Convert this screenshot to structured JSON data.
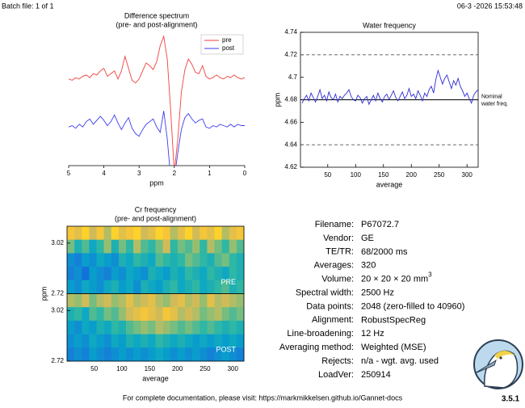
{
  "header": {
    "batch": "Batch file: 1 of 1",
    "timestamp": "06-3 -2026 15:53:48"
  },
  "chart_data": [
    {
      "type": "line",
      "title": "Difference spectrum",
      "subtitle": "(pre- and post-alignment)",
      "xlabel": "ppm",
      "x": [
        5.0,
        4.9,
        4.8,
        4.7,
        4.6,
        4.5,
        4.4,
        4.3,
        4.2,
        4.1,
        4.0,
        3.9,
        3.8,
        3.7,
        3.6,
        3.5,
        3.4,
        3.3,
        3.2,
        3.1,
        3.0,
        2.9,
        2.8,
        2.7,
        2.6,
        2.5,
        2.4,
        2.3,
        2.2,
        2.1,
        2.0,
        1.9,
        1.8,
        1.7,
        1.6,
        1.5,
        1.4,
        1.3,
        1.2,
        1.1,
        1.0,
        0.9,
        0.8,
        0.7,
        0.6,
        0.5,
        0.4,
        0.3,
        0.2,
        0.1,
        0.0
      ],
      "xlim": [
        5,
        0
      ],
      "xticks": [
        5,
        4,
        3,
        2,
        1,
        0
      ],
      "ylim": [
        -10,
        10
      ],
      "legend": "upper right",
      "series": [
        {
          "name": "pre",
          "color": "#f0413c",
          "values": [
            3.0,
            2.8,
            3.2,
            3.0,
            3.4,
            3.6,
            3.2,
            3.8,
            3.6,
            4.2,
            4.6,
            3.4,
            3.8,
            4.2,
            3.0,
            4.2,
            6.4,
            4.6,
            2.8,
            2.4,
            3.0,
            4.2,
            5.4,
            5.0,
            4.4,
            5.6,
            8.0,
            9.4,
            6.0,
            -2.0,
            -11.0,
            -6.0,
            1.0,
            4.4,
            6.0,
            5.2,
            4.0,
            3.8,
            5.0,
            3.4,
            3.0,
            3.2,
            3.6,
            3.2,
            3.0,
            3.4,
            3.2,
            3.6,
            3.2,
            3.0,
            3.2
          ]
        },
        {
          "name": "post",
          "color": "#3c3cf0",
          "values": [
            -4.2,
            -4.0,
            -4.4,
            -3.8,
            -4.2,
            -3.4,
            -3.0,
            -3.8,
            -3.2,
            -2.6,
            -3.2,
            -4.0,
            -3.4,
            -2.4,
            -3.6,
            -4.6,
            -3.6,
            -2.8,
            -4.4,
            -5.2,
            -5.6,
            -4.6,
            -3.8,
            -3.4,
            -3.0,
            -4.2,
            -5.0,
            -1.8,
            -6.0,
            -12.0,
            -12.0,
            -8.0,
            -4.6,
            -2.8,
            -2.2,
            -3.0,
            -3.6,
            -3.2,
            -3.0,
            -4.2,
            -4.4,
            -4.0,
            -4.2,
            -3.8,
            -4.0,
            -4.2,
            -3.8,
            -4.2,
            -3.8,
            -4.0,
            -4.0
          ]
        }
      ]
    },
    {
      "type": "line",
      "title": "Water frequency",
      "xlabel": "average",
      "ylabel": "ppm",
      "x": [
        4,
        8,
        12,
        16,
        20,
        24,
        28,
        32,
        36,
        40,
        44,
        48,
        52,
        56,
        60,
        64,
        68,
        72,
        76,
        80,
        84,
        88,
        92,
        96,
        100,
        104,
        108,
        112,
        116,
        120,
        124,
        128,
        132,
        136,
        140,
        144,
        148,
        152,
        156,
        160,
        164,
        168,
        172,
        176,
        180,
        184,
        188,
        192,
        196,
        200,
        204,
        208,
        212,
        216,
        220,
        224,
        228,
        232,
        236,
        240,
        244,
        248,
        252,
        256,
        260,
        264,
        268,
        272,
        276,
        280,
        284,
        288,
        292,
        296,
        300,
        304,
        308,
        312,
        316,
        320
      ],
      "xlim": [
        1,
        320
      ],
      "xticks": [
        50,
        100,
        150,
        200,
        250,
        300
      ],
      "ylim": [
        4.62,
        4.74
      ],
      "yticks": [
        4.62,
        4.64,
        4.66,
        4.68,
        4.7,
        4.72,
        4.74
      ],
      "series": [
        {
          "color": "#2b2bd6",
          "values": [
            4.677,
            4.681,
            4.684,
            4.679,
            4.686,
            4.682,
            4.678,
            4.683,
            4.689,
            4.681,
            4.684,
            4.679,
            4.687,
            4.682,
            4.68,
            4.685,
            4.678,
            4.683,
            4.681,
            4.684,
            4.686,
            4.689,
            4.683,
            4.68,
            4.679,
            4.684,
            4.682,
            4.677,
            4.681,
            4.683,
            4.676,
            4.68,
            4.684,
            4.679,
            4.686,
            4.681,
            4.678,
            4.683,
            4.685,
            4.68,
            4.684,
            4.688,
            4.682,
            4.679,
            4.683,
            4.687,
            4.681,
            4.684,
            4.69,
            4.683,
            4.685,
            4.681,
            4.688,
            4.684,
            4.679,
            4.686,
            4.683,
            4.689,
            4.692,
            4.686,
            4.698,
            4.706,
            4.7,
            4.694,
            4.699,
            4.702,
            4.696,
            4.69,
            4.697,
            4.693,
            4.699,
            4.692,
            4.688,
            4.683,
            4.686,
            4.681,
            4.677,
            4.684,
            4.687,
            4.689
          ]
        }
      ],
      "reference_lines": [
        {
          "value": 4.72,
          "style": "dashed"
        },
        {
          "value": 4.64,
          "style": "dashed"
        },
        {
          "value": 4.68,
          "style": "solid",
          "label": [
            "Nominal",
            "water freq."
          ]
        }
      ]
    },
    {
      "type": "heatmap",
      "title": "Cr frequency",
      "subtitle": "(pre- and post-alignment)",
      "xlabel": "average",
      "ylabel": "ppm",
      "xlim": [
        1,
        320
      ],
      "xticks": [
        50,
        100,
        150,
        200,
        250,
        300
      ],
      "ylim": [
        2.72,
        3.12
      ],
      "yticks": [
        2.72,
        3.02
      ],
      "colormap": "parula",
      "panels": [
        {
          "label": "PRE",
          "z": [
            [
              0.85,
              0.8,
              0.9,
              0.75,
              0.85,
              0.7,
              0.9,
              0.8,
              0.85,
              0.9,
              0.75,
              0.8,
              0.9,
              0.85,
              0.7,
              0.8,
              0.9,
              0.75,
              0.85,
              0.8,
              0.9,
              0.7,
              0.8,
              0.85
            ],
            [
              0.6,
              0.45,
              0.55,
              0.4,
              0.5,
              0.65,
              0.45,
              0.6,
              0.5,
              0.7,
              0.55,
              0.5,
              0.6,
              0.75,
              0.5,
              0.6,
              0.55,
              0.65,
              0.5,
              0.7,
              0.6,
              0.5,
              0.65,
              0.55
            ],
            [
              0.3,
              0.25,
              0.35,
              0.3,
              0.4,
              0.35,
              0.3,
              0.45,
              0.4,
              0.5,
              0.45,
              0.4,
              0.55,
              0.5,
              0.45,
              0.5,
              0.6,
              0.55,
              0.5,
              0.45,
              0.55,
              0.6,
              0.5,
              0.45
            ],
            [
              0.25,
              0.3,
              0.2,
              0.35,
              0.3,
              0.25,
              0.35,
              0.3,
              0.4,
              0.35,
              0.3,
              0.45,
              0.4,
              0.35,
              0.45,
              0.4,
              0.5,
              0.45,
              0.4,
              0.5,
              0.45,
              0.4,
              0.5,
              0.45
            ],
            [
              0.35,
              0.3,
              0.4,
              0.35,
              0.3,
              0.4,
              0.45,
              0.35,
              0.4,
              0.3,
              0.45,
              0.4,
              0.35,
              0.45,
              0.5,
              0.4,
              0.45,
              0.5,
              0.4,
              0.45,
              0.5,
              0.55,
              0.45,
              0.5
            ]
          ]
        },
        {
          "label": "POST",
          "z": [
            [
              0.7,
              0.65,
              0.75,
              0.6,
              0.7,
              0.75,
              0.65,
              0.7,
              0.8,
              0.7,
              0.75,
              0.8,
              0.7,
              0.65,
              0.75,
              0.8,
              0.7,
              0.75,
              0.65,
              0.8,
              0.7,
              0.75,
              0.7,
              0.65
            ],
            [
              0.45,
              0.5,
              0.4,
              0.55,
              0.5,
              0.6,
              0.55,
              0.65,
              0.75,
              0.8,
              0.85,
              0.8,
              0.75,
              0.85,
              0.8,
              0.7,
              0.75,
              0.7,
              0.6,
              0.65,
              0.7,
              0.6,
              0.55,
              0.6
            ],
            [
              0.35,
              0.3,
              0.4,
              0.35,
              0.45,
              0.4,
              0.5,
              0.45,
              0.55,
              0.6,
              0.65,
              0.6,
              0.7,
              0.65,
              0.6,
              0.55,
              0.6,
              0.55,
              0.5,
              0.55,
              0.5,
              0.45,
              0.5,
              0.45
            ],
            [
              0.3,
              0.35,
              0.3,
              0.4,
              0.35,
              0.3,
              0.4,
              0.35,
              0.45,
              0.4,
              0.45,
              0.4,
              0.5,
              0.45,
              0.4,
              0.45,
              0.4,
              0.35,
              0.4,
              0.35,
              0.4,
              0.35,
              0.4,
              0.35
            ],
            [
              0.25,
              0.3,
              0.25,
              0.35,
              0.3,
              0.25,
              0.3,
              0.35,
              0.3,
              0.35,
              0.3,
              0.35,
              0.4,
              0.35,
              0.3,
              0.35,
              0.3,
              0.35,
              0.3,
              0.25,
              0.3,
              0.35,
              0.3,
              0.25
            ]
          ]
        }
      ]
    }
  ],
  "info": {
    "rows": [
      [
        "Filename:",
        "P67072.7"
      ],
      [
        "Vendor:",
        "GE"
      ],
      [
        "TE/TR:",
        "68/2000 ms"
      ],
      [
        "Averages:",
        "320"
      ],
      [
        "Volume:",
        "20 × 20 × 20 mm",
        "3"
      ],
      [
        "Spectral width:",
        "2500 Hz"
      ],
      [
        "Data points:",
        "2048 (zero-filled to 40960)"
      ],
      [
        "Alignment:",
        "RobustSpecReg"
      ],
      [
        "Line-broadening:",
        "12 Hz"
      ],
      [
        "Averaging method:",
        "Weighted (MSE)"
      ],
      [
        "Rejects:",
        "n/a - wgt. avg. used"
      ],
      [
        "LoadVer:",
        "250914"
      ]
    ]
  },
  "footer": {
    "note": "For complete documentation, please visit: https://markmikkelsen.github.io/Gannet-docs",
    "version": "3.5.1"
  }
}
